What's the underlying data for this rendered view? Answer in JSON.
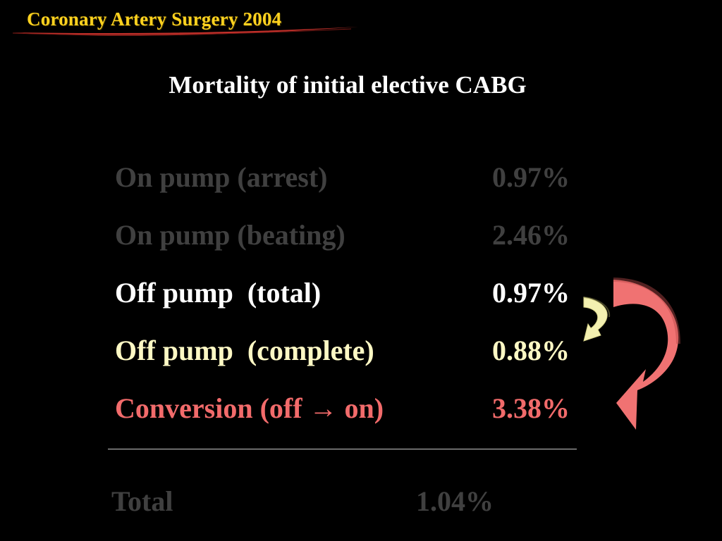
{
  "header": {
    "title": "Coronary Artery Surgery 2004"
  },
  "slide": {
    "title": "Mortality of initial elective CABG"
  },
  "rows": [
    {
      "label": "On pump (arrest)",
      "value": "0.97%",
      "color": "#404040"
    },
    {
      "label": "On pump (beating)",
      "value": "2.46%",
      "color": "#404040"
    },
    {
      "label": "Off pump  (total)",
      "value": "0.97%",
      "color": "#ffffff"
    },
    {
      "label": "Off pump  (complete)",
      "value": "0.88%",
      "color": "#fdf8c4"
    },
    {
      "label": "Conversion (off → on)",
      "value": "3.38%",
      "color": "#f26b6b"
    }
  ],
  "total": {
    "label": "Total",
    "value": "1.04%"
  },
  "colors": {
    "background": "#000000",
    "header_title": "#ffd21f",
    "swoosh": "#c0302a",
    "small_arrow": "#f3f0b0",
    "large_arrow": "#f07272"
  },
  "icons": {
    "small_arrow": "curved-arrow-icon",
    "large_arrow": "curved-arrow-icon"
  }
}
